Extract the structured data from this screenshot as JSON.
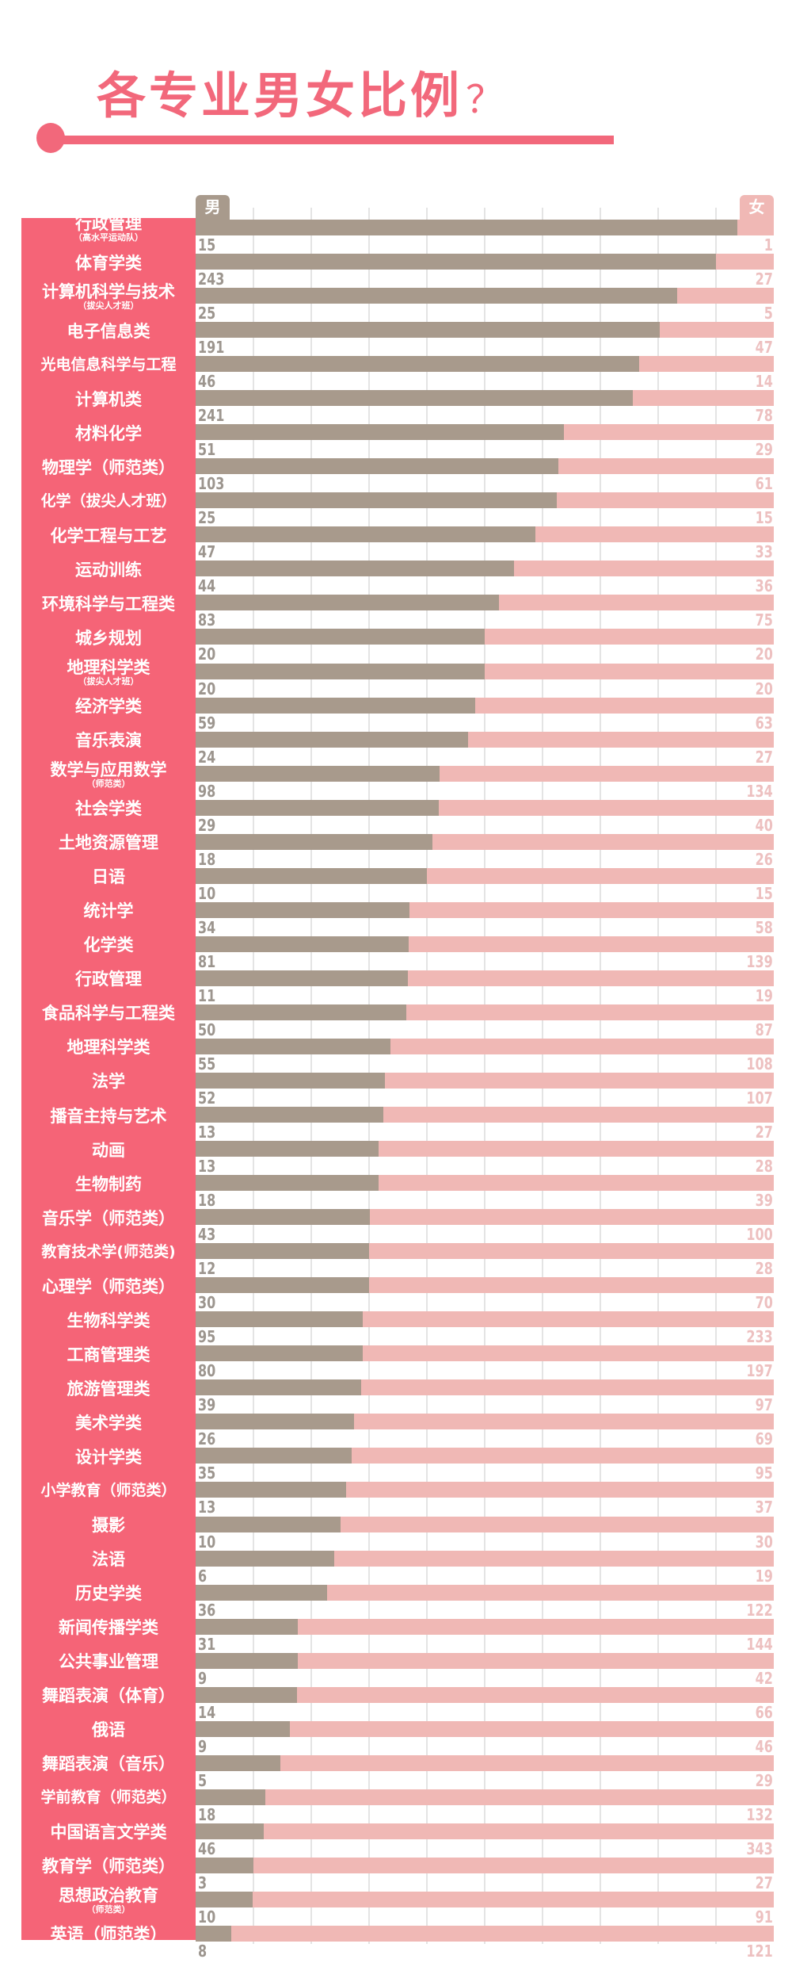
{
  "title": "各专业男女比例",
  "title_mark": "？",
  "colors": {
    "accent": "#f2687b",
    "label_bg": "#f56477",
    "male": "#a89a8c",
    "female": "#f0b8b5"
  },
  "chart_data": {
    "type": "bar",
    "orientation": "horizontal",
    "stacked": "100%",
    "title": "各专业男女比例？",
    "legend": [
      "男",
      "女"
    ],
    "grid": true,
    "series": [
      {
        "name": "男"
      },
      {
        "name": "女"
      }
    ],
    "rows": [
      {
        "label": "行政管理",
        "sub": "（高水平运动队）",
        "male": 15,
        "female": 1
      },
      {
        "label": "体育学类",
        "sub": "",
        "male": 243,
        "female": 27
      },
      {
        "label": "计算机科学与技术",
        "sub": "（拔尖人才班）",
        "male": 25,
        "female": 5
      },
      {
        "label": "电子信息类",
        "sub": "",
        "male": 191,
        "female": 47
      },
      {
        "label": "光电信息科学与工程",
        "sub": "",
        "male": 46,
        "female": 14
      },
      {
        "label": "计算机类",
        "sub": "",
        "male": 241,
        "female": 78
      },
      {
        "label": "材料化学",
        "sub": "",
        "male": 51,
        "female": 29
      },
      {
        "label": "物理学（师范类）",
        "sub": "",
        "male": 103,
        "female": 61
      },
      {
        "label": "化学（拔尖人才班）",
        "sub": "",
        "male": 25,
        "female": 15
      },
      {
        "label": "化学工程与工艺",
        "sub": "",
        "male": 47,
        "female": 33
      },
      {
        "label": "运动训练",
        "sub": "",
        "male": 44,
        "female": 36
      },
      {
        "label": "环境科学与工程类",
        "sub": "",
        "male": 83,
        "female": 75
      },
      {
        "label": "城乡规划",
        "sub": "",
        "male": 20,
        "female": 20
      },
      {
        "label": "地理科学类",
        "sub": "（拔尖人才班）",
        "male": 20,
        "female": 20
      },
      {
        "label": "经济学类",
        "sub": "",
        "male": 59,
        "female": 63
      },
      {
        "label": "音乐表演",
        "sub": "",
        "male": 24,
        "female": 27
      },
      {
        "label": "数学与应用数学",
        "sub": "（师范类）",
        "male": 98,
        "female": 134
      },
      {
        "label": "社会学类",
        "sub": "",
        "male": 29,
        "female": 40
      },
      {
        "label": "土地资源管理",
        "sub": "",
        "male": 18,
        "female": 26
      },
      {
        "label": "日语",
        "sub": "",
        "male": 10,
        "female": 15
      },
      {
        "label": "统计学",
        "sub": "",
        "male": 34,
        "female": 58
      },
      {
        "label": "化学类",
        "sub": "",
        "male": 81,
        "female": 139
      },
      {
        "label": "行政管理",
        "sub": "",
        "male": 11,
        "female": 19
      },
      {
        "label": "食品科学与工程类",
        "sub": "",
        "male": 50,
        "female": 87
      },
      {
        "label": "地理科学类",
        "sub": "",
        "male": 55,
        "female": 108
      },
      {
        "label": "法学",
        "sub": "",
        "male": 52,
        "female": 107
      },
      {
        "label": "播音主持与艺术",
        "sub": "",
        "male": 13,
        "female": 27
      },
      {
        "label": "动画",
        "sub": "",
        "male": 13,
        "female": 28
      },
      {
        "label": "生物制药",
        "sub": "",
        "male": 18,
        "female": 39
      },
      {
        "label": "音乐学（师范类）",
        "sub": "",
        "male": 43,
        "female": 100
      },
      {
        "label": "教育技术学(师范类)",
        "sub": "",
        "male": 12,
        "female": 28
      },
      {
        "label": "心理学（师范类）",
        "sub": "",
        "male": 30,
        "female": 70
      },
      {
        "label": "生物科学类",
        "sub": "",
        "male": 95,
        "female": 233
      },
      {
        "label": "工商管理类",
        "sub": "",
        "male": 80,
        "female": 197
      },
      {
        "label": "旅游管理类",
        "sub": "",
        "male": 39,
        "female": 97
      },
      {
        "label": "美术学类",
        "sub": "",
        "male": 26,
        "female": 69
      },
      {
        "label": "设计学类",
        "sub": "",
        "male": 35,
        "female": 95
      },
      {
        "label": "小学教育（师范类）",
        "sub": "",
        "male": 13,
        "female": 37
      },
      {
        "label": "摄影",
        "sub": "",
        "male": 10,
        "female": 30
      },
      {
        "label": "法语",
        "sub": "",
        "male": 6,
        "female": 19
      },
      {
        "label": "历史学类",
        "sub": "",
        "male": 36,
        "female": 122
      },
      {
        "label": "新闻传播学类",
        "sub": "",
        "male": 31,
        "female": 144
      },
      {
        "label": "公共事业管理",
        "sub": "",
        "male": 9,
        "female": 42
      },
      {
        "label": "舞蹈表演（体育）",
        "sub": "",
        "male": 14,
        "female": 66
      },
      {
        "label": "俄语",
        "sub": "",
        "male": 9,
        "female": 46
      },
      {
        "label": "舞蹈表演（音乐）",
        "sub": "",
        "male": 5,
        "female": 29
      },
      {
        "label": "学前教育（师范类）",
        "sub": "",
        "male": 18,
        "female": 132
      },
      {
        "label": "中国语言文学类",
        "sub": "",
        "male": 46,
        "female": 343
      },
      {
        "label": "教育学（师范类）",
        "sub": "",
        "male": 3,
        "female": 27
      },
      {
        "label": "思想政治教育",
        "sub": "（师范类）",
        "male": 10,
        "female": 91
      },
      {
        "label": "英语（师范类）",
        "sub": "",
        "male": 8,
        "female": 121
      }
    ]
  }
}
